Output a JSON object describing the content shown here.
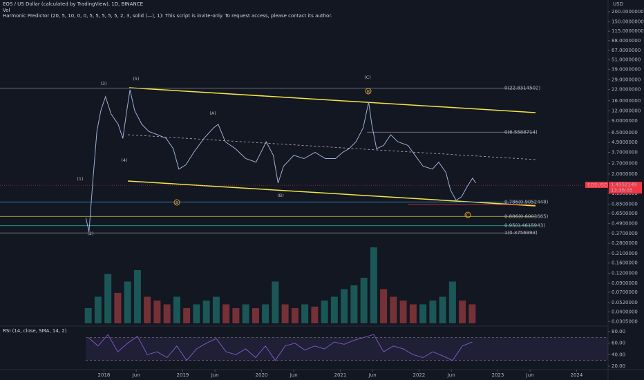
{
  "chart_data": {
    "type": "line",
    "title": "EOS / US Dollar (calculated by TradingView), 1D, BINANCE",
    "subtitle": "Vol",
    "indicator": "Harmonic Predictor (20, 5, 10, 0, 0, 5, 5, 5, 5, 5, 2, 3, solid (—), 1): This script is invite-only. To request access, please contact its author.",
    "currency": "USD",
    "log_scale": true,
    "x": [
      2017.77,
      2017.81,
      2017.86,
      2017.91,
      2017.96,
      2018.02,
      2018.09,
      2018.18,
      2018.24,
      2018.29,
      2018.33,
      2018.39,
      2018.48,
      2018.57,
      2018.68,
      2018.79,
      2018.88,
      2018.95,
      2019.04,
      2019.14,
      2019.27,
      2019.39,
      2019.45,
      2019.54,
      2019.67,
      2019.8,
      2019.93,
      2020.06,
      2020.15,
      2020.21,
      2020.28,
      2020.41,
      2020.54,
      2020.68,
      2020.81,
      2020.94,
      2021.03,
      2021.11,
      2021.2,
      2021.29,
      2021.36,
      2021.4,
      2021.46,
      2021.55,
      2021.64,
      2021.73,
      2021.86,
      2021.95,
      2022.05,
      2022.17,
      2022.25,
      2022.34,
      2022.4,
      2022.47,
      2022.54,
      2022.61,
      2022.68,
      2022.72
    ],
    "series": [
      {
        "name": "EOSUSD",
        "color": "#9db2d6",
        "values": [
          0.58,
          0.39,
          1.71,
          6.7,
          12.1,
          18,
          11,
          8.2,
          5.5,
          12.1,
          21.8,
          12.1,
          8.2,
          6.7,
          6.1,
          5.5,
          4.1,
          2.3,
          2.6,
          3.7,
          5.5,
          7.4,
          8.2,
          5.0,
          4.1,
          3.1,
          2.8,
          5.0,
          3.4,
          1.55,
          2.5,
          3.4,
          3.1,
          3.7,
          3.1,
          3.1,
          3.7,
          4.1,
          5.0,
          7.4,
          15.4,
          8.2,
          4.1,
          4.5,
          6.1,
          5.0,
          4.5,
          3.4,
          2.5,
          2.3,
          2.8,
          2.1,
          1.27,
          0.95,
          1.05,
          1.4,
          1.78,
          1.55
        ]
      }
    ],
    "last_price": 1.4552149,
    "countdown": "13:36:05",
    "price_tag_color": "#f23645",
    "xlim": [
      2016.68,
      2024.4
    ],
    "xticks": [
      {
        "value": 2018,
        "label": "2018"
      },
      {
        "value": 2018.41,
        "label": "Jun"
      },
      {
        "value": 2019,
        "label": "2019"
      },
      {
        "value": 2019.41,
        "label": "Jun"
      },
      {
        "value": 2020,
        "label": "2020"
      },
      {
        "value": 2020.41,
        "label": "Jun"
      },
      {
        "value": 2021,
        "label": "2021"
      },
      {
        "value": 2021.41,
        "label": "Jun"
      },
      {
        "value": 2022,
        "label": "2022"
      },
      {
        "value": 2022.41,
        "label": "Jun"
      },
      {
        "value": 2023,
        "label": "2023"
      },
      {
        "value": 2023.41,
        "label": "Jun"
      },
      {
        "value": 2024,
        "label": "2024"
      }
    ],
    "ylim": [
      0.0278,
      279
    ],
    "yticks": [
      {
        "value": 200,
        "label": "200.0000000"
      },
      {
        "value": 150,
        "label": "150.0000000"
      },
      {
        "value": 115,
        "label": "115.0000000"
      },
      {
        "value": 88,
        "label": "88.0000000"
      },
      {
        "value": 67,
        "label": "67.0000000"
      },
      {
        "value": 51,
        "label": "51.0000000"
      },
      {
        "value": 39,
        "label": "39.0000000"
      },
      {
        "value": 29,
        "label": "29.0000000"
      },
      {
        "value": 22,
        "label": "22.0000000"
      },
      {
        "value": 16,
        "label": "16.0000000"
      },
      {
        "value": 12,
        "label": "12.0000000"
      },
      {
        "value": 9,
        "label": "9.0000000"
      },
      {
        "value": 6.5,
        "label": "6.5000000"
      },
      {
        "value": 4.9,
        "label": "4.9000000"
      },
      {
        "value": 3.7,
        "label": "3.7000000"
      },
      {
        "value": 2.7,
        "label": "2.7000000"
      },
      {
        "value": 2,
        "label": "2.0000000"
      },
      {
        "value": 1.15,
        "label": "1.1500000"
      },
      {
        "value": 0.85,
        "label": "0.8500000"
      },
      {
        "value": 0.65,
        "label": "0.6500000"
      },
      {
        "value": 0.49,
        "label": "0.4900000"
      },
      {
        "value": 0.37,
        "label": "0.3700000"
      },
      {
        "value": 0.28,
        "label": "0.2800000"
      },
      {
        "value": 0.21,
        "label": "0.2100000"
      },
      {
        "value": 0.16,
        "label": "0.1600000"
      },
      {
        "value": 0.12,
        "label": "0.1200000"
      },
      {
        "value": 0.09,
        "label": "0.0900000"
      },
      {
        "value": 0.07,
        "label": "0.0700000"
      },
      {
        "value": 0.052,
        "label": "0.0520000"
      },
      {
        "value": 0.04,
        "label": "0.0400000"
      },
      {
        "value": 0.0305,
        "label": "0.0305000"
      }
    ],
    "fib_levels": [
      {
        "value": 22.8314502,
        "label": "0(22.8314502)",
        "color": "#787b86",
        "from": 2016.44
      },
      {
        "value": 6.5588714,
        "label": "0(6.5588714)",
        "color": "#787b86",
        "from": 2021.34
      },
      {
        "value": 0.9052448,
        "label": "0.786(0.9052448)",
        "color": "#2e8bc0",
        "from": 2016.44
      },
      {
        "value": 0.6003665,
        "label": "0.886(0.6003665)",
        "color": "#c8c83c",
        "from": 2016.44
      },
      {
        "value": 0.4615943,
        "label": "0.95(0.4615943)",
        "color": "#26a69a",
        "from": 2016.44
      },
      {
        "value": 0.3756993,
        "label": "1(0.3756993)",
        "color": "#787b86",
        "from": 2016.44
      }
    ],
    "waves": [
      "(1)",
      "(2)",
      "(3)",
      "(4)",
      "(5)",
      "(A)",
      "(B)",
      "(C)"
    ],
    "points": [
      "A",
      "B",
      "C"
    ],
    "volume": {
      "x": [
        2017.8,
        2017.925,
        2018.05,
        2018.175,
        2018.3,
        2018.425,
        2018.55,
        2018.675,
        2018.8,
        2018.925,
        2019.05,
        2019.175,
        2019.3,
        2019.425,
        2019.55,
        2019.675,
        2019.8,
        2019.925,
        2020.05,
        2020.175,
        2020.3,
        2020.425,
        2020.55,
        2020.675,
        2020.8,
        2020.925,
        2021.05,
        2021.175,
        2021.3,
        2021.425,
        2021.55,
        2021.675,
        2021.8,
        2021.925,
        2022.05,
        2022.175,
        2022.3,
        2022.425,
        2022.55,
        2022.675
      ],
      "values": [
        20,
        35,
        65,
        40,
        55,
        70,
        35,
        30,
        25,
        35,
        20,
        25,
        30,
        35,
        25,
        20,
        25,
        20,
        25,
        55,
        25,
        20,
        25,
        22,
        30,
        35,
        45,
        50,
        60,
        100,
        45,
        35,
        30,
        25,
        25,
        30,
        35,
        55,
        30,
        25
      ],
      "up_color": "#26a69a",
      "down_color": "#ef5350",
      "ylim": [
        0,
        100
      ]
    },
    "rsi": {
      "title": "RSI (14, close, SMA, 14, 2)",
      "color": "#7e57c2",
      "x": [
        2017.8,
        2017.925,
        2018.05,
        2018.175,
        2018.3,
        2018.425,
        2018.55,
        2018.675,
        2018.8,
        2018.925,
        2019.05,
        2019.175,
        2019.3,
        2019.425,
        2019.55,
        2019.675,
        2019.8,
        2019.925,
        2020.05,
        2020.175,
        2020.3,
        2020.425,
        2020.55,
        2020.675,
        2020.8,
        2020.925,
        2021.05,
        2021.175,
        2021.3,
        2021.425,
        2021.55,
        2021.675,
        2021.8,
        2021.925,
        2022.05,
        2022.175,
        2022.3,
        2022.425,
        2022.55,
        2022.675
      ],
      "values": [
        70,
        55,
        75,
        45,
        60,
        72,
        40,
        45,
        35,
        55,
        30,
        50,
        60,
        68,
        45,
        40,
        50,
        35,
        55,
        30,
        55,
        60,
        48,
        55,
        50,
        62,
        58,
        65,
        70,
        75,
        45,
        55,
        50,
        40,
        35,
        45,
        38,
        30,
        55,
        62
      ],
      "ylim": [
        10.4,
        89.6
      ],
      "yticks": [
        {
          "value": 80,
          "label": "80.00"
        },
        {
          "value": 60,
          "label": "60.00"
        },
        {
          "value": 40,
          "label": "40.00"
        },
        {
          "value": 20,
          "label": "20.00"
        }
      ],
      "bands": [
        30,
        70
      ]
    }
  }
}
